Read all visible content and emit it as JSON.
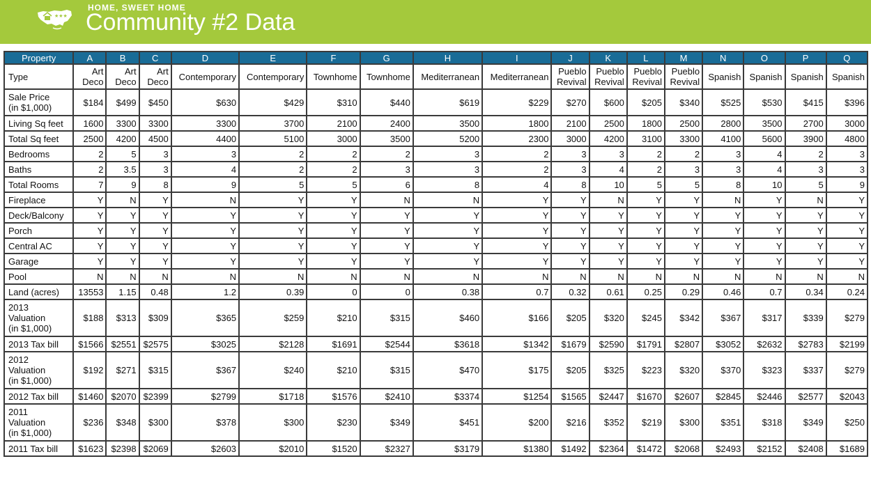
{
  "header": {
    "eyebrow": "HOME, SWEET HOME",
    "title": "Community #2 Data"
  },
  "colors": {
    "banner": "#a4c93c",
    "table_header": "#196c97"
  },
  "table": {
    "columns": [
      "Property",
      "A",
      "B",
      "C",
      "D",
      "E",
      "F",
      "G",
      "H",
      "I",
      "J",
      "K",
      "L",
      "M",
      "N",
      "O",
      "P",
      "Q"
    ],
    "type_row": {
      "label": "Type",
      "values": [
        [
          "Art",
          "Deco"
        ],
        [
          "Art",
          "Deco"
        ],
        [
          "Art",
          "Deco"
        ],
        [
          "Contemporary"
        ],
        [
          "Contemporary"
        ],
        [
          "Townhome"
        ],
        [
          "Townhome"
        ],
        [
          "Mediterranean"
        ],
        [
          "Mediterranean"
        ],
        [
          "Pueblo",
          "Revival"
        ],
        [
          "Pueblo",
          "Revival"
        ],
        [
          "Pueblo",
          "Revival"
        ],
        [
          "Pueblo",
          "Revival"
        ],
        [
          "Spanish"
        ],
        [
          "Spanish"
        ],
        [
          "Spanish"
        ],
        [
          "Spanish"
        ]
      ]
    },
    "rows": [
      {
        "label": [
          "Sale Price",
          "(in $1,000)"
        ],
        "style": "tall",
        "values": [
          "$184",
          "$499",
          "$450",
          "$630",
          "$429",
          "$310",
          "$440",
          "$619",
          "$229",
          "$270",
          "$600",
          "$205",
          "$340",
          "$525",
          "$530",
          "$415",
          "$396"
        ]
      },
      {
        "label": [
          "Living Sq feet"
        ],
        "values": [
          "1600",
          "3300",
          "3300",
          "3300",
          "3700",
          "2100",
          "2400",
          "3500",
          "1800",
          "2100",
          "2500",
          "1800",
          "2500",
          "2800",
          "3500",
          "2700",
          "3000"
        ]
      },
      {
        "label": [
          "Total Sq feet"
        ],
        "values": [
          "2500",
          "4200",
          "4500",
          "4400",
          "5100",
          "3000",
          "3500",
          "5200",
          "2300",
          "3000",
          "4200",
          "3100",
          "3300",
          "4100",
          "5600",
          "3900",
          "4800"
        ]
      },
      {
        "label": [
          "Bedrooms"
        ],
        "values": [
          "2",
          "5",
          "3",
          "3",
          "2",
          "2",
          "2",
          "3",
          "2",
          "3",
          "3",
          "2",
          "2",
          "3",
          "4",
          "2",
          "3"
        ]
      },
      {
        "label": [
          "Baths"
        ],
        "values": [
          "2",
          "3.5",
          "3",
          "4",
          "2",
          "2",
          "3",
          "3",
          "2",
          "3",
          "4",
          "2",
          "3",
          "3",
          "4",
          "3",
          "3"
        ]
      },
      {
        "label": [
          "Total Rooms"
        ],
        "values": [
          "7",
          "9",
          "8",
          "9",
          "5",
          "5",
          "6",
          "8",
          "4",
          "8",
          "10",
          "5",
          "5",
          "8",
          "10",
          "5",
          "9"
        ]
      },
      {
        "label": [
          "Fireplace"
        ],
        "values": [
          "Y",
          "N",
          "Y",
          "N",
          "Y",
          "Y",
          "N",
          "N",
          "Y",
          "Y",
          "N",
          "Y",
          "Y",
          "N",
          "Y",
          "N",
          "Y"
        ]
      },
      {
        "label": [
          "Deck/Balcony"
        ],
        "values": [
          "Y",
          "Y",
          "Y",
          "Y",
          "Y",
          "Y",
          "Y",
          "Y",
          "Y",
          "Y",
          "Y",
          "Y",
          "Y",
          "Y",
          "Y",
          "Y",
          "Y"
        ]
      },
      {
        "label": [
          "Porch"
        ],
        "values": [
          "Y",
          "Y",
          "Y",
          "Y",
          "Y",
          "Y",
          "Y",
          "Y",
          "Y",
          "Y",
          "Y",
          "Y",
          "Y",
          "Y",
          "Y",
          "Y",
          "Y"
        ]
      },
      {
        "label": [
          "Central AC"
        ],
        "values": [
          "Y",
          "Y",
          "Y",
          "Y",
          "Y",
          "Y",
          "Y",
          "Y",
          "Y",
          "Y",
          "Y",
          "Y",
          "Y",
          "Y",
          "Y",
          "Y",
          "Y"
        ]
      },
      {
        "label": [
          "Garage"
        ],
        "values": [
          "Y",
          "Y",
          "Y",
          "Y",
          "Y",
          "Y",
          "Y",
          "Y",
          "Y",
          "Y",
          "Y",
          "Y",
          "Y",
          "Y",
          "Y",
          "Y",
          "Y"
        ]
      },
      {
        "label": [
          "Pool"
        ],
        "values": [
          "N",
          "N",
          "N",
          "N",
          "N",
          "N",
          "N",
          "N",
          "N",
          "N",
          "N",
          "N",
          "N",
          "N",
          "N",
          "N",
          "N"
        ]
      },
      {
        "label": [
          "Land (acres)"
        ],
        "values": [
          "13553",
          "1.15",
          "0.48",
          "1.2",
          "0.39",
          "0",
          "0",
          "0.38",
          "0.7",
          "0.32",
          "0.61",
          "0.25",
          "0.29",
          "0.46",
          "0.7",
          "0.34",
          "0.24"
        ]
      },
      {
        "label": [
          "2013",
          "Valuation",
          "(in $1,000)"
        ],
        "style": "tall3",
        "values": [
          "$188",
          "$313",
          "$309",
          "$365",
          "$259",
          "$210",
          "$315",
          "$460",
          "$166",
          "$205",
          "$320",
          "$245",
          "$342",
          "$367",
          "$317",
          "$339",
          "$279"
        ]
      },
      {
        "label": [
          "2013 Tax bill"
        ],
        "values": [
          "$1566",
          "$2551",
          "$2575",
          "$3025",
          "$2128",
          "$1691",
          "$2544",
          "$3618",
          "$1342",
          "$1679",
          "$2590",
          "$1791",
          "$2807",
          "$3052",
          "$2632",
          "$2783",
          "$2199"
        ]
      },
      {
        "label": [
          "2012",
          "Valuation",
          "(in $1,000)"
        ],
        "style": "tall3",
        "values": [
          "$192",
          "$271",
          "$315",
          "$367",
          "$240",
          "$210",
          "$315",
          "$470",
          "$175",
          "$205",
          "$325",
          "$223",
          "$320",
          "$370",
          "$323",
          "$337",
          "$279"
        ]
      },
      {
        "label": [
          "2012 Tax bill"
        ],
        "values": [
          "$1460",
          "$2070",
          "$2399",
          "$2799",
          "$1718",
          "$1576",
          "$2410",
          "$3374",
          "$1254",
          "$1565",
          "$2447",
          "$1670",
          "$2607",
          "$2845",
          "$2446",
          "$2577",
          "$2043"
        ]
      },
      {
        "label": [
          "2011",
          "Valuation",
          "(in $1,000)"
        ],
        "style": "tall3",
        "values": [
          "$236",
          "$348",
          "$300",
          "$378",
          "$300",
          "$230",
          "$349",
          "$451",
          "$200",
          "$216",
          "$352",
          "$219",
          "$300",
          "$351",
          "$318",
          "$349",
          "$250"
        ]
      },
      {
        "label": [
          "2011 Tax bill"
        ],
        "values": [
          "$1623",
          "$2398",
          "$2069",
          "$2603",
          "$2010",
          "$1520",
          "$2327",
          "$3179",
          "$1380",
          "$1492",
          "$2364",
          "$1472",
          "$2068",
          "$2493",
          "$2152",
          "$2408",
          "$1689"
        ]
      }
    ]
  }
}
